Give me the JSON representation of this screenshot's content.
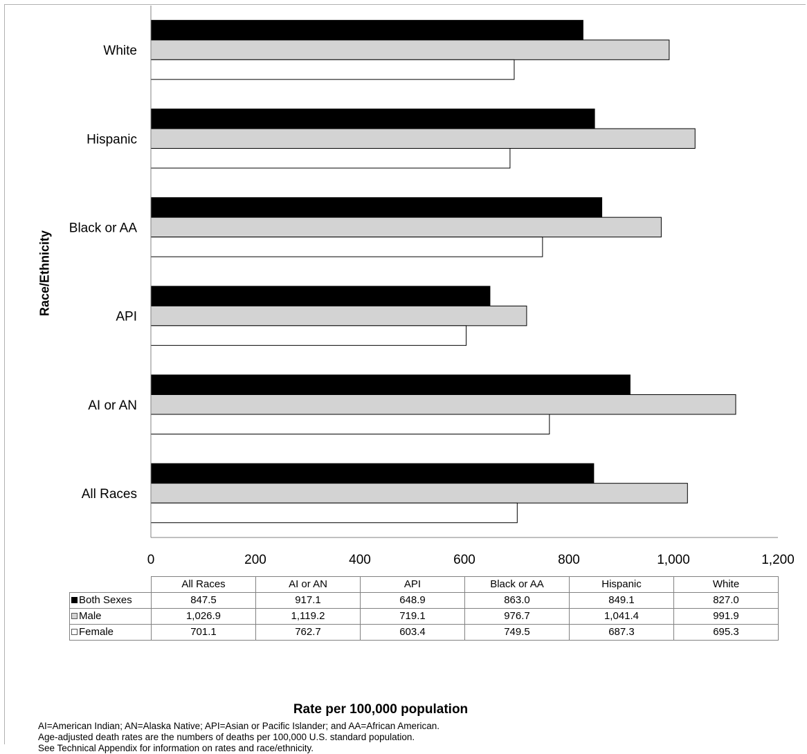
{
  "chart_data": {
    "type": "bar",
    "orientation": "horizontal",
    "categories": [
      "All Races",
      "AI or AN",
      "API",
      "Black or AA",
      "Hispanic",
      "White"
    ],
    "series": [
      {
        "name": "Both Sexes",
        "color": "#000000",
        "values": [
          847.5,
          917.1,
          648.9,
          863.0,
          849.1,
          827.0
        ]
      },
      {
        "name": "Male",
        "color": "#d3d3d3",
        "values": [
          1026.9,
          1119.2,
          719.1,
          976.7,
          1041.4,
          991.9
        ]
      },
      {
        "name": "Female",
        "color": "#ffffff",
        "values": [
          701.1,
          762.7,
          603.4,
          749.5,
          687.3,
          695.3
        ]
      }
    ],
    "xlim": [
      0,
      1200
    ],
    "xticks": [
      "0",
      "200",
      "400",
      "600",
      "800",
      "1,000",
      "1,200"
    ],
    "xlabel": "Rate per 100,000 population",
    "ylabel": "Race/Ethnicity",
    "legend": "data table below chart",
    "grid": false,
    "table": {
      "rows": [
        {
          "label": "Both Sexes",
          "values": [
            "847.5",
            "917.1",
            "648.9",
            "863.0",
            "849.1",
            "827.0"
          ]
        },
        {
          "label": "Male",
          "values": [
            "1,026.9",
            "1,119.2",
            "719.1",
            "976.7",
            "1,041.4",
            "991.9"
          ]
        },
        {
          "label": "Female",
          "values": [
            "701.1",
            "762.7",
            "603.4",
            "749.5",
            "687.3",
            "695.3"
          ]
        }
      ]
    }
  },
  "footnotes": [
    "AI=American  Indian; AN=Alaska Native; API=Asian or Pacific Islander; and AA=African American.",
    "Age-adjusted death rates are the numbers of deaths per 100,000 U.S. standard population.",
    "See Technical Appendix for  information on  rates and race/ethnicity."
  ]
}
